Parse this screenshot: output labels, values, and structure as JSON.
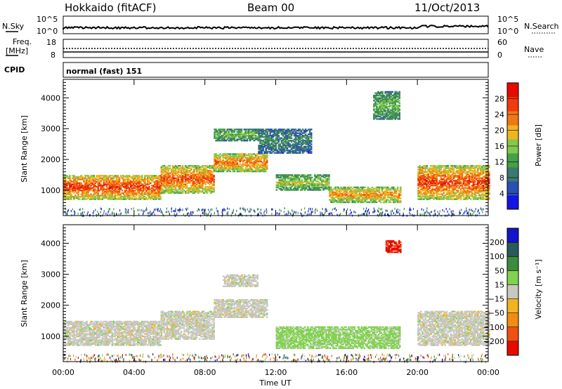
{
  "header": {
    "station": "Hokkaido (fitACF)",
    "beam": "Beam 00",
    "date": "11/Oct/2013"
  },
  "strip": {
    "nsky_label": "N.Sky",
    "nsky_ticks": [
      "10^5",
      "10^0"
    ],
    "nsearch_label": "N.Search",
    "nsearch_ticks": [
      "10^5",
      "10^0"
    ],
    "freq_label_1": "Freq.",
    "freq_label_2": "[MHz]",
    "freq_ticks": [
      "18",
      "8"
    ],
    "nave_label": "Nave",
    "nave_ticks": [
      "60",
      "0"
    ],
    "cpid_label": "CPID",
    "cpid_value": "normal (fast) 151"
  },
  "chart_data": [
    {
      "type": "heatmap",
      "panel": "power",
      "ylabel": "Slant Range [km]",
      "yticks": [
        1000,
        2000,
        3000,
        4000
      ],
      "ylim": [
        180,
        4600
      ],
      "xlim": [
        0,
        24
      ],
      "colorbar": {
        "label": "Power [dB]",
        "ticks": [
          "4",
          "8",
          "12",
          "16",
          "20",
          "24",
          "28"
        ],
        "range": [
          0,
          32
        ],
        "colors": [
          "#1414e6",
          "#2a50b4",
          "#3b7a6e",
          "#46a046",
          "#82c850",
          "#f0b41e",
          "#f07814",
          "#f03c0a",
          "#e60a00"
        ]
      },
      "bands": [
        {
          "t0": 0,
          "t1": 5.5,
          "r0": 700,
          "r1": 1500,
          "level": 0.9
        },
        {
          "t0": 5.5,
          "t1": 8.5,
          "r0": 900,
          "r1": 1800,
          "level": 0.85
        },
        {
          "t0": 8.5,
          "t1": 11.5,
          "r0": 1600,
          "r1": 2200,
          "level": 0.8
        },
        {
          "t0": 12,
          "t1": 15,
          "r0": 1000,
          "r1": 1500,
          "level": 0.55
        },
        {
          "t0": 15,
          "t1": 19,
          "r0": 600,
          "r1": 1100,
          "level": 0.75
        },
        {
          "t0": 20,
          "t1": 24,
          "r0": 700,
          "r1": 1800,
          "level": 0.9
        },
        {
          "t0": 8.5,
          "t1": 11,
          "r0": 2600,
          "r1": 3000,
          "level": 0.45
        },
        {
          "t0": 11,
          "t1": 14,
          "r0": 2200,
          "r1": 3000,
          "level": 0.3
        },
        {
          "t0": 17.5,
          "t1": 19,
          "r0": 3300,
          "r1": 4200,
          "level": 0.45
        }
      ]
    },
    {
      "type": "heatmap",
      "panel": "velocity",
      "ylabel": "Slant Range [km]",
      "xlabel": "Time UT",
      "xticks": [
        "00:00",
        "04:00",
        "08:00",
        "12:00",
        "16:00",
        "20:00",
        "00:00"
      ],
      "yticks": [
        1000,
        2000,
        3000,
        4000
      ],
      "ylim": [
        180,
        4600
      ],
      "xlim": [
        0,
        24
      ],
      "colorbar": {
        "label": "Velocity [m s⁻¹]",
        "ticks": [
          "200",
          "100",
          "50",
          "15",
          "−15",
          "−50",
          "−100",
          "−200"
        ],
        "colors": [
          "#1414c8",
          "#2a5a5a",
          "#3c8c3c",
          "#82d250",
          "#c8c8c0",
          "#f0b41e",
          "#f08c14",
          "#f05014",
          "#e60a00"
        ]
      },
      "bands": [
        {
          "t0": 0,
          "t1": 5.5,
          "r0": 700,
          "r1": 1500,
          "level": "grey"
        },
        {
          "t0": 5.5,
          "t1": 8.5,
          "r0": 900,
          "r1": 1800,
          "level": "grey"
        },
        {
          "t0": 8.5,
          "t1": 11.5,
          "r0": 1600,
          "r1": 2200,
          "level": "grey"
        },
        {
          "t0": 12,
          "t1": 19,
          "r0": 600,
          "r1": 1300,
          "level": "green"
        },
        {
          "t0": 20,
          "t1": 24,
          "r0": 700,
          "r1": 1800,
          "level": "grey"
        },
        {
          "t0": 9,
          "t1": 11,
          "r0": 2600,
          "r1": 3000,
          "level": "grey"
        },
        {
          "t0": 18.2,
          "t1": 19,
          "r0": 3700,
          "r1": 4100,
          "level": "red"
        }
      ]
    }
  ]
}
